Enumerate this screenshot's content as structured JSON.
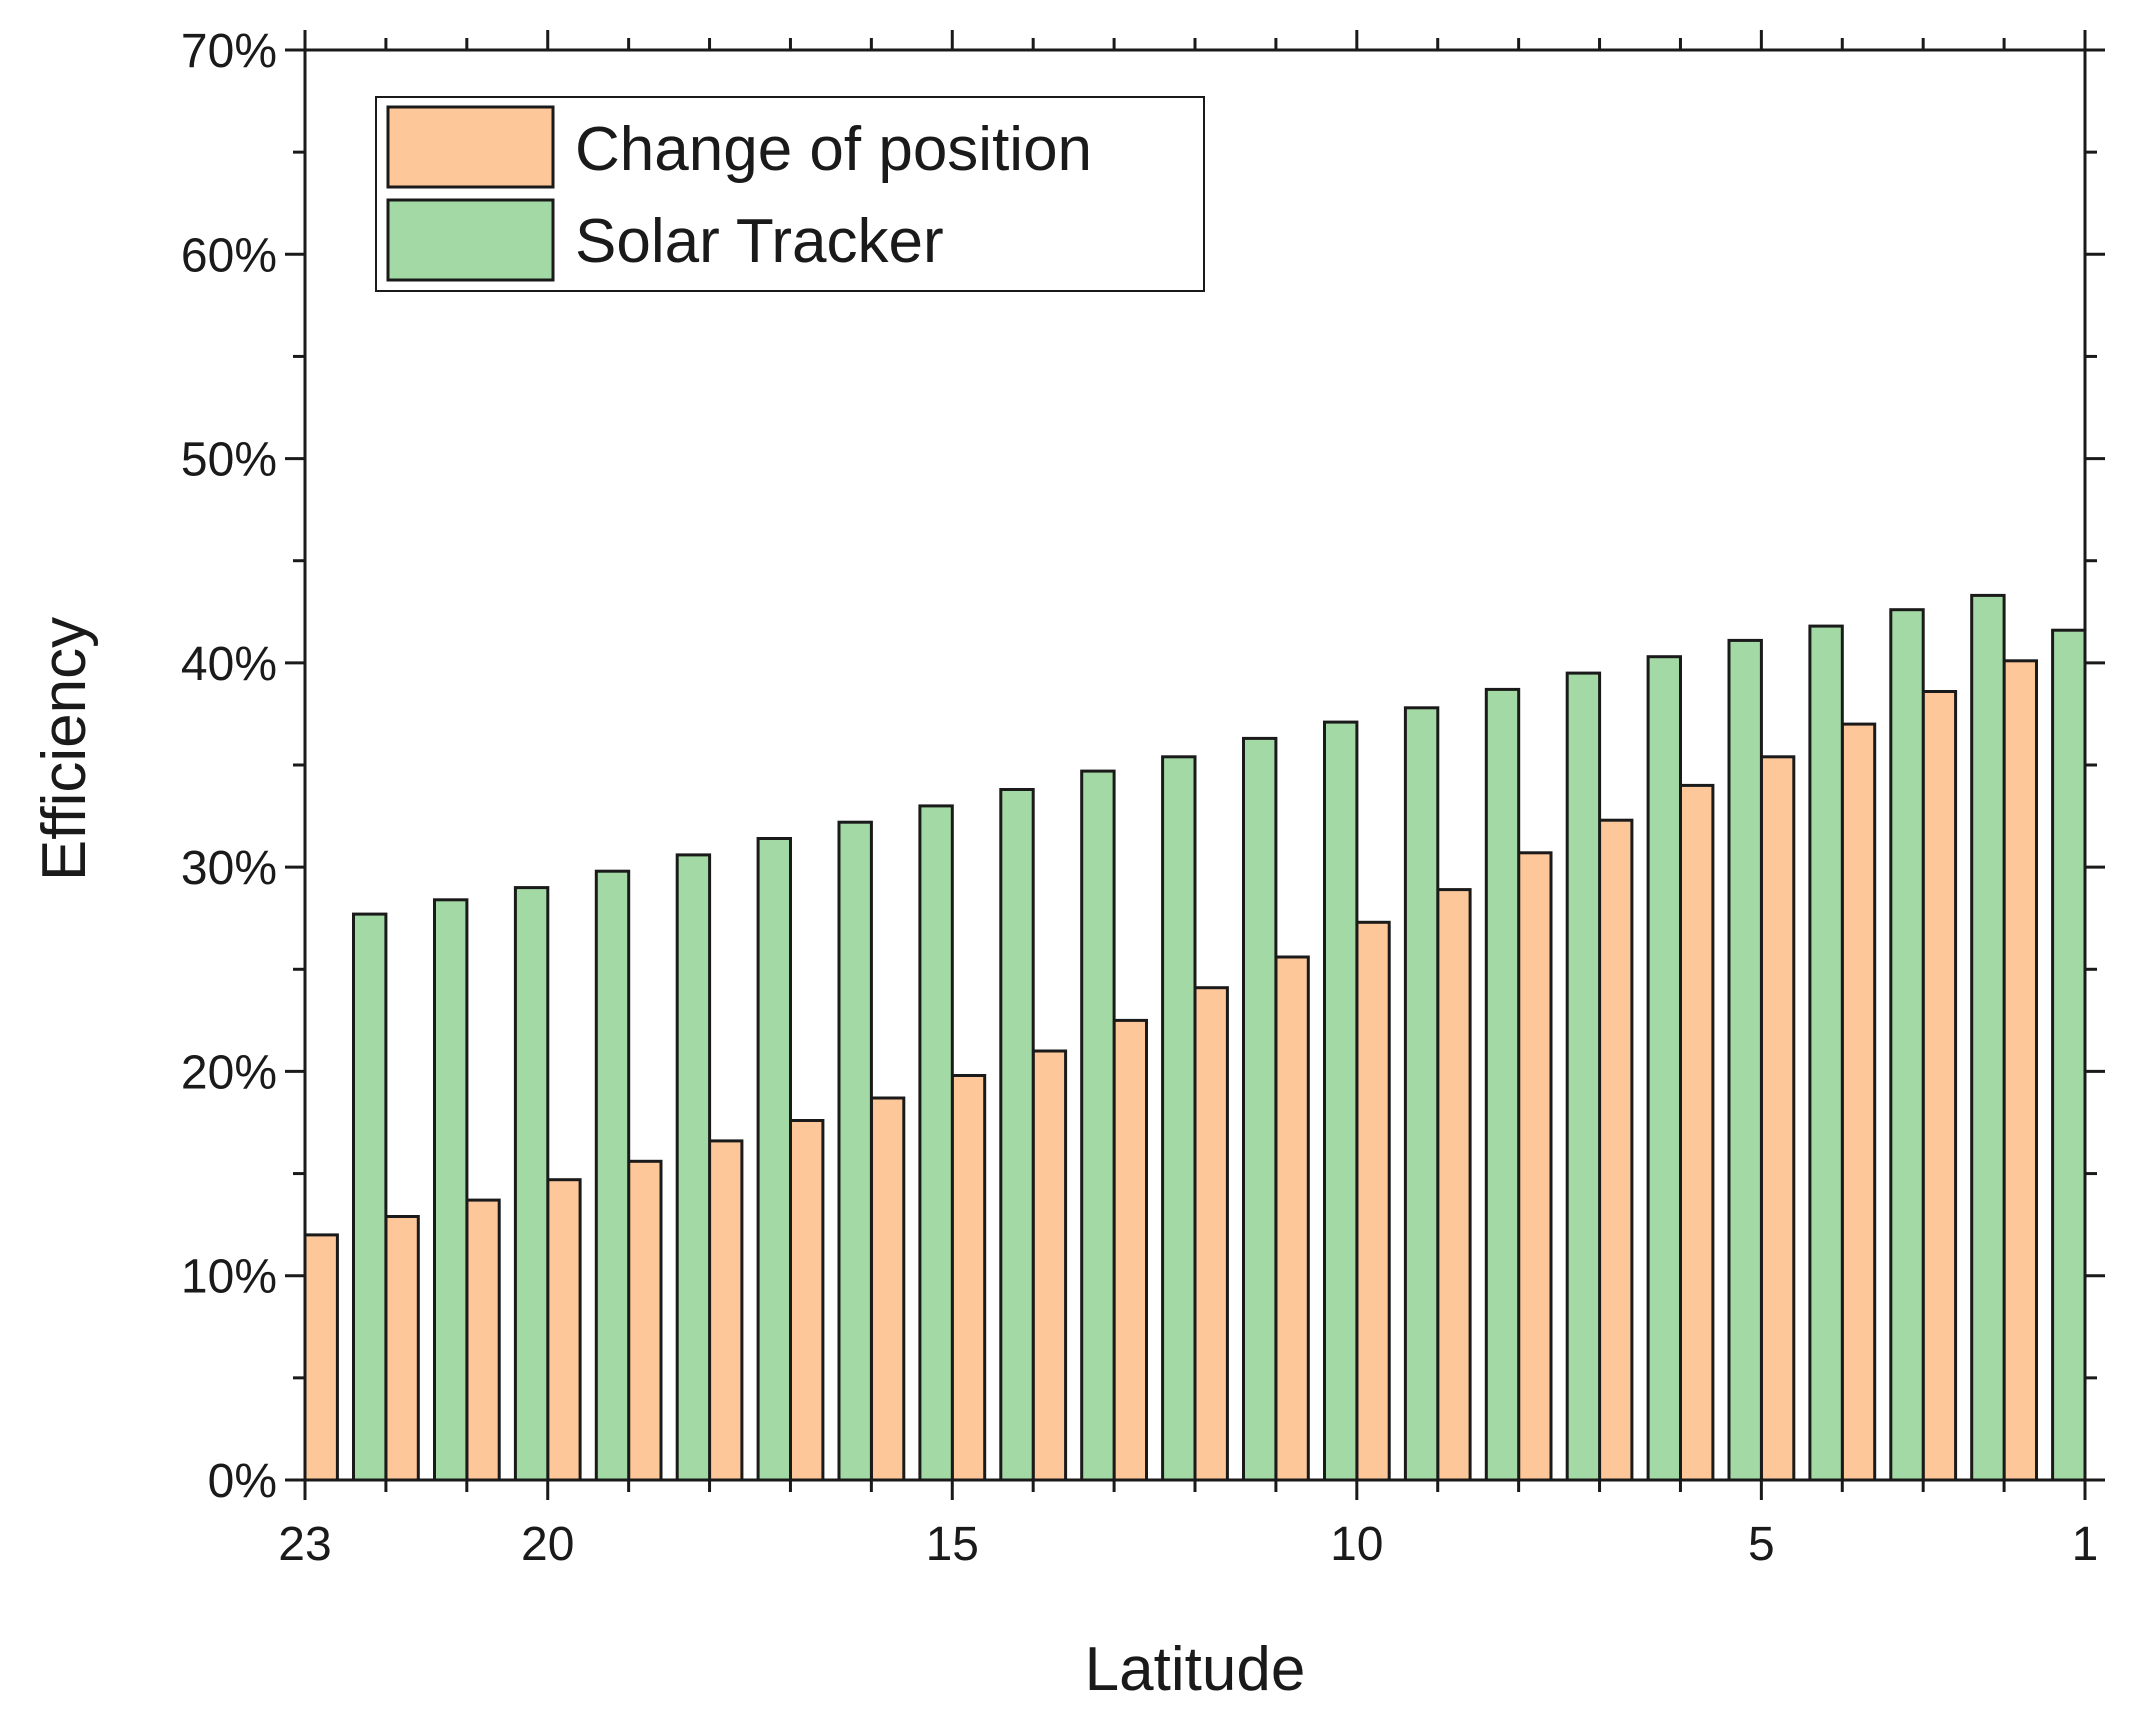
{
  "chart_data": {
    "type": "bar",
    "title": "",
    "xlabel": "Latitude",
    "ylabel": "Efficiency",
    "x": [
      23,
      22,
      21,
      20,
      19,
      18,
      17,
      16,
      15,
      14,
      13,
      12,
      11,
      10,
      9,
      8,
      7,
      6,
      5,
      4,
      3,
      2,
      1
    ],
    "x_range": [
      23,
      1
    ],
    "x_ticks": [
      {
        "value": 23,
        "label": "23"
      },
      {
        "value": 20,
        "label": "20"
      },
      {
        "value": 15,
        "label": "15"
      },
      {
        "value": 10,
        "label": "10"
      },
      {
        "value": 5,
        "label": "5"
      },
      {
        "value": 1,
        "label": "1"
      }
    ],
    "ylim": [
      0,
      70
    ],
    "y_ticks": [
      {
        "value": 0,
        "label": "0%"
      },
      {
        "value": 10,
        "label": "10%"
      },
      {
        "value": 20,
        "label": "20%"
      },
      {
        "value": 30,
        "label": "30%"
      },
      {
        "value": 40,
        "label": "40%"
      },
      {
        "value": 50,
        "label": "50%"
      },
      {
        "value": 60,
        "label": "60%"
      },
      {
        "value": 70,
        "label": "70%"
      }
    ],
    "series": [
      {
        "name": "Change of position",
        "color": "#FEC799",
        "values": [
          12.0,
          12.9,
          13.7,
          14.7,
          15.6,
          16.6,
          17.6,
          18.7,
          19.8,
          21.0,
          22.5,
          24.1,
          25.6,
          27.3,
          28.9,
          30.7,
          32.3,
          34.0,
          35.4,
          37.0,
          38.6,
          40.1,
          null
        ]
      },
      {
        "name": "Solar Tracker",
        "color": "#A3D9A4",
        "values": [
          null,
          27.7,
          28.4,
          29.0,
          29.8,
          30.6,
          31.4,
          32.2,
          33.0,
          33.8,
          34.7,
          35.4,
          36.3,
          37.1,
          37.8,
          38.7,
          39.5,
          40.3,
          41.1,
          41.8,
          42.6,
          43.3,
          41.6
        ]
      }
    ],
    "legend": {
      "position": "top-left"
    },
    "grid": false
  }
}
